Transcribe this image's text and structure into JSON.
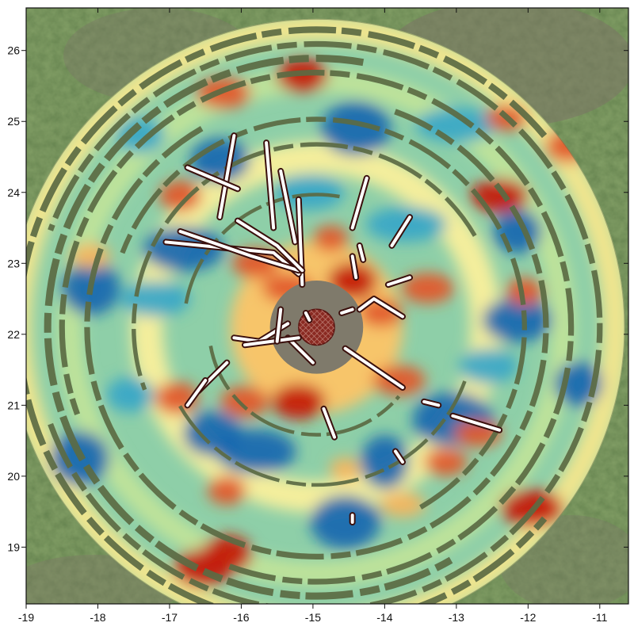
{
  "chart_data": {
    "type": "heatmap",
    "title": "",
    "xlabel": "",
    "ylabel": "",
    "xlim": [
      -19,
      -10.6
    ],
    "ylim": [
      18.2,
      26.6
    ],
    "x_ticks": [
      "-19",
      "-18",
      "-17",
      "-16",
      "-15",
      "-14",
      "-13",
      "-12",
      "-11"
    ],
    "y_ticks": [
      "19",
      "20",
      "21",
      "22",
      "23",
      "24",
      "25",
      "26"
    ],
    "grid": false,
    "legend": "none",
    "background": "aerial photo of grass and bare soil",
    "colormap": [
      "#1767b0",
      "#36a6c8",
      "#8fd0a4",
      "#f2f3a0",
      "#f6b55e",
      "#e25a2a",
      "#c41c08"
    ],
    "survey_center": [
      -14.95,
      22.1
    ],
    "survey_radius": 4.3,
    "central_pit": {
      "x": -14.95,
      "y": 22.1,
      "r": 0.25,
      "color": "#8a2a22"
    },
    "hot_spots": [
      {
        "x": -16.2,
        "y": 18.9,
        "level": 1.0
      },
      {
        "x": -16.55,
        "y": 18.7,
        "level": 1.0
      },
      {
        "x": -11.95,
        "y": 19.55,
        "level": 1.0
      },
      {
        "x": -14.45,
        "y": 22.75,
        "level": 0.95
      },
      {
        "x": -15.2,
        "y": 21.05,
        "level": 0.9
      },
      {
        "x": -12.4,
        "y": 23.95,
        "level": 0.85
      },
      {
        "x": -11.45,
        "y": 24.65,
        "level": 0.8
      },
      {
        "x": -15.15,
        "y": 25.65,
        "level": 0.85
      },
      {
        "x": -16.25,
        "y": 25.4,
        "level": 0.75
      },
      {
        "x": -16.85,
        "y": 23.95,
        "level": 0.75
      },
      {
        "x": -15.8,
        "y": 23.0,
        "level": 0.7
      },
      {
        "x": -13.4,
        "y": 22.65,
        "level": 0.7
      },
      {
        "x": -16.9,
        "y": 21.1,
        "level": 0.8
      },
      {
        "x": -15.95,
        "y": 21.05,
        "level": 0.75
      },
      {
        "x": -13.8,
        "y": 21.35,
        "level": 0.7
      },
      {
        "x": -16.2,
        "y": 19.8,
        "level": 0.65
      },
      {
        "x": -13.15,
        "y": 20.2,
        "level": 0.6
      },
      {
        "x": -12.7,
        "y": 20.6,
        "level": 0.55
      },
      {
        "x": -12.05,
        "y": 22.6,
        "level": 0.6
      },
      {
        "x": -14.05,
        "y": 22.3,
        "level": 0.6
      },
      {
        "x": -15.35,
        "y": 22.65,
        "level": 0.65
      },
      {
        "x": -14.75,
        "y": 23.35,
        "level": 0.55
      },
      {
        "x": -18.1,
        "y": 23.1,
        "level": 0.5
      },
      {
        "x": -13.75,
        "y": 19.6,
        "level": 0.5
      },
      {
        "x": -14.55,
        "y": 20.1,
        "level": 0.45
      },
      {
        "x": -12.3,
        "y": 25.05,
        "level": 0.55
      }
    ],
    "cold_spots": [
      {
        "x": -17.4,
        "y": 24.8
      },
      {
        "x": -16.3,
        "y": 24.45
      },
      {
        "x": -14.4,
        "y": 24.9
      },
      {
        "x": -13.0,
        "y": 24.95
      },
      {
        "x": -12.15,
        "y": 23.45
      },
      {
        "x": -18.1,
        "y": 22.65
      },
      {
        "x": -17.2,
        "y": 22.5
      },
      {
        "x": -15.8,
        "y": 20.35
      },
      {
        "x": -14.0,
        "y": 20.2
      },
      {
        "x": -12.55,
        "y": 21.55
      },
      {
        "x": -12.15,
        "y": 22.2
      },
      {
        "x": -13.05,
        "y": 20.8
      },
      {
        "x": -17.55,
        "y": 21.15
      },
      {
        "x": -16.4,
        "y": 20.6
      },
      {
        "x": -14.55,
        "y": 19.35
      },
      {
        "x": -13.7,
        "y": 23.55
      },
      {
        "x": -11.3,
        "y": 21.3
      },
      {
        "x": -18.25,
        "y": 20.25
      },
      {
        "x": -15.05,
        "y": 24.0
      },
      {
        "x": -16.8,
        "y": 23.2
      }
    ],
    "gap_rings": [
      {
        "r": 4.15,
        "w": 0.09,
        "from": 40,
        "to": 320
      },
      {
        "r": 3.95,
        "w": 0.08,
        "from": 200,
        "to": 520
      },
      {
        "r": 3.75,
        "w": 0.1,
        "from": 80,
        "to": 300
      },
      {
        "r": 3.55,
        "w": 0.08,
        "from": 250,
        "to": 560
      },
      {
        "r": 3.2,
        "w": 0.08,
        "from": 120,
        "to": 430
      },
      {
        "r": 2.9,
        "w": 0.07,
        "from": 300,
        "to": 520
      },
      {
        "r": 2.55,
        "w": 0.06,
        "from": 30,
        "to": 200
      },
      {
        "r": 2.2,
        "w": 0.05,
        "from": 210,
        "to": 340
      },
      {
        "r": 1.85,
        "w": 0.05,
        "from": 80,
        "to": 170
      },
      {
        "r": 1.5,
        "w": 0.05,
        "from": 190,
        "to": 320
      }
    ],
    "features": [
      {
        "x": [
          -16.3,
          -16.1
        ],
        "y": [
          23.65,
          24.8
        ]
      },
      {
        "x": [
          -16.75,
          -16.05
        ],
        "y": [
          24.35,
          24.05
        ]
      },
      {
        "x": [
          -15.65,
          -15.55
        ],
        "y": [
          24.7,
          23.5
        ]
      },
      {
        "x": [
          -15.45,
          -15.25
        ],
        "y": [
          24.3,
          23.3
        ]
      },
      {
        "x": [
          -15.2,
          -15.15
        ],
        "y": [
          23.9,
          22.7
        ]
      },
      {
        "x": [
          -17.05,
          -15.55,
          -15.2
        ],
        "y": [
          23.3,
          23.15,
          22.85
        ]
      },
      {
        "x": [
          -16.85,
          -15.85,
          -15.2
        ],
        "y": [
          23.45,
          23.1,
          22.9
        ]
      },
      {
        "x": [
          -16.05,
          -15.5,
          -15.15
        ],
        "y": [
          23.6,
          23.25,
          22.9
        ]
      },
      {
        "x": [
          -14.25,
          -14.45
        ],
        "y": [
          24.2,
          23.5
        ]
      },
      {
        "x": [
          -13.9,
          -13.65
        ],
        "y": [
          23.25,
          23.65
        ]
      },
      {
        "x": [
          -14.35,
          -14.3
        ],
        "y": [
          23.25,
          23.05
        ]
      },
      {
        "x": [
          -14.45,
          -14.4
        ],
        "y": [
          23.1,
          22.8
        ]
      },
      {
        "x": [
          -13.95,
          -13.65
        ],
        "y": [
          22.7,
          22.8
        ]
      },
      {
        "x": [
          -14.35,
          -14.15,
          -13.75
        ],
        "y": [
          22.35,
          22.5,
          22.25
        ]
      },
      {
        "x": [
          -14.6,
          -14.45
        ],
        "y": [
          22.3,
          22.35
        ]
      },
      {
        "x": [
          -16.6,
          -16.2
        ],
        "y": [
          21.2,
          21.6
        ]
      },
      {
        "x": [
          -16.75,
          -16.5
        ],
        "y": [
          21.0,
          21.35
        ]
      },
      {
        "x": [
          -16.1,
          -15.75,
          -15.35
        ],
        "y": [
          21.95,
          21.9,
          22.15
        ]
      },
      {
        "x": [
          -15.35,
          -15.0
        ],
        "y": [
          21.95,
          21.6
        ]
      },
      {
        "x": [
          -14.55,
          -13.75
        ],
        "y": [
          21.8,
          21.25
        ]
      },
      {
        "x": [
          -13.45,
          -13.25
        ],
        "y": [
          21.05,
          21.0
        ]
      },
      {
        "x": [
          -13.05,
          -12.4
        ],
        "y": [
          20.85,
          20.65
        ]
      },
      {
        "x": [
          -14.85,
          -14.7
        ],
        "y": [
          20.95,
          20.55
        ]
      },
      {
        "x": [
          -13.85,
          -13.75
        ],
        "y": [
          20.35,
          20.2
        ]
      },
      {
        "x": [
          -14.45,
          -14.45
        ],
        "y": [
          19.45,
          19.35
        ]
      },
      {
        "x": [
          -15.05,
          -15.1
        ],
        "y": [
          22.2,
          22.3
        ]
      }
    ],
    "t_feature": {
      "x": [
        -15.95,
        -15.2
      ],
      "y": [
        21.85,
        21.95
      ],
      "stem": [
        [
          -15.5,
          21.9
        ],
        [
          -15.45,
          22.35
        ]
      ]
    }
  }
}
